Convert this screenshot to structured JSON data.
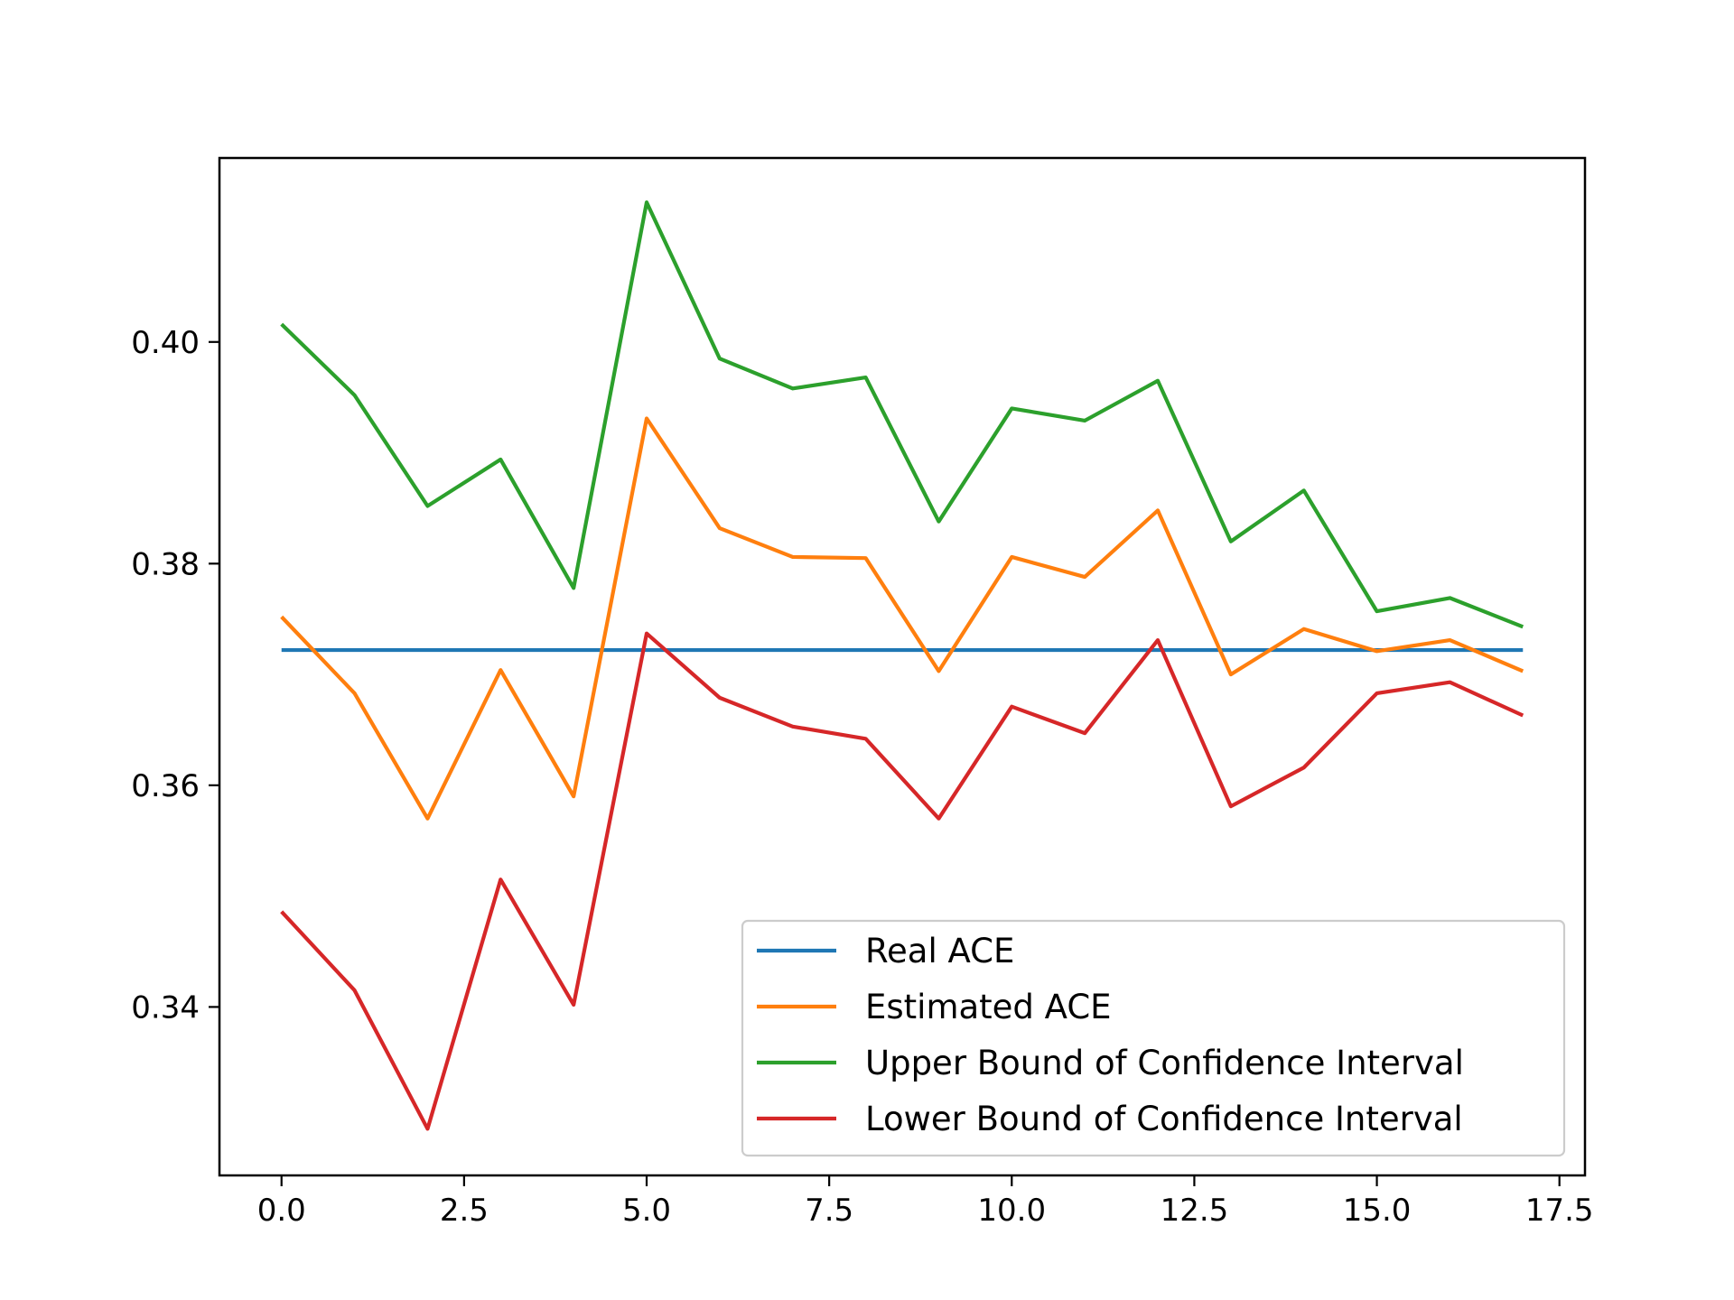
{
  "chart_data": {
    "type": "line",
    "title": "",
    "xlabel": "",
    "ylabel": "",
    "xlim": [
      -0.85,
      17.85
    ],
    "ylim": [
      0.3248,
      0.4166
    ],
    "xticks": [
      0.0,
      2.5,
      5.0,
      7.5,
      10.0,
      12.5,
      15.0,
      17.5
    ],
    "xtick_labels": [
      "0.0",
      "2.5",
      "5.0",
      "7.5",
      "10.0",
      "12.5",
      "15.0",
      "17.5"
    ],
    "yticks": [
      0.34,
      0.36,
      0.38,
      0.4
    ],
    "ytick_labels": [
      "0.34",
      "0.36",
      "0.38",
      "0.40"
    ],
    "grid": false,
    "legend_position": "lower-right",
    "x": [
      0,
      1,
      2,
      3,
      4,
      5,
      6,
      7,
      8,
      9,
      10,
      11,
      12,
      13,
      14,
      15,
      16,
      17
    ],
    "series": [
      {
        "name": "Real ACE",
        "color": "#1f77b4",
        "values": [
          0.3722,
          0.3722,
          0.3722,
          0.3722,
          0.3722,
          0.3722,
          0.3722,
          0.3722,
          0.3722,
          0.3722,
          0.3722,
          0.3722,
          0.3722,
          0.3722,
          0.3722,
          0.3722,
          0.3722,
          0.3722
        ]
      },
      {
        "name": "Estimated ACE",
        "color": "#ff7f0e",
        "values": [
          0.3752,
          0.3683,
          0.357,
          0.3704,
          0.359,
          0.3931,
          0.3832,
          0.3806,
          0.3805,
          0.3703,
          0.3806,
          0.3788,
          0.3848,
          0.37,
          0.3741,
          0.3721,
          0.3731,
          0.3703
        ]
      },
      {
        "name": "Upper Bound of Confidence Interval",
        "color": "#2ca02c",
        "values": [
          0.4016,
          0.3952,
          0.3852,
          0.3894,
          0.3778,
          0.4126,
          0.3985,
          0.3958,
          0.3968,
          0.3838,
          0.394,
          0.3929,
          0.3965,
          0.382,
          0.3866,
          0.3757,
          0.3769,
          0.3743
        ]
      },
      {
        "name": "Lower Bound of Confidence Interval",
        "color": "#d62728",
        "values": [
          0.3486,
          0.3415,
          0.329,
          0.3515,
          0.3402,
          0.3737,
          0.3679,
          0.3653,
          0.3642,
          0.357,
          0.3671,
          0.3647,
          0.3731,
          0.3581,
          0.3616,
          0.3683,
          0.3693,
          0.3663
        ]
      }
    ]
  }
}
